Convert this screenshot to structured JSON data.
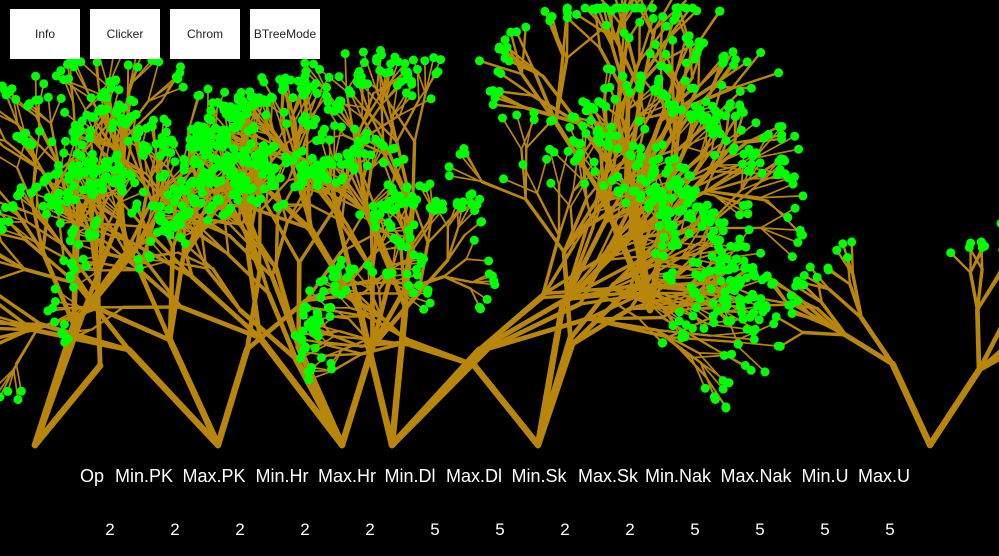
{
  "toolbar": {
    "buttons": [
      "Info",
      "Clicker",
      "Chrom",
      "BTreeMode"
    ]
  },
  "stats": {
    "labels": [
      "Op",
      "Min.PK",
      "Max.PK",
      "Min.Hr",
      "Max.Hr",
      "Min.Dl",
      "Max.Dl",
      "Min.Sk",
      "Max.Sk",
      "Min.Nak",
      "Max.Nak",
      "Min.U",
      "Max.U"
    ],
    "values": [
      "2",
      "2",
      "2",
      "2",
      "2",
      "5",
      "5",
      "2",
      "2",
      "5",
      "5",
      "5",
      "5"
    ]
  },
  "colors": {
    "background": "#000000",
    "branch": "#b8860b",
    "leaf": "#00ff00",
    "text": "#ffffff"
  }
}
